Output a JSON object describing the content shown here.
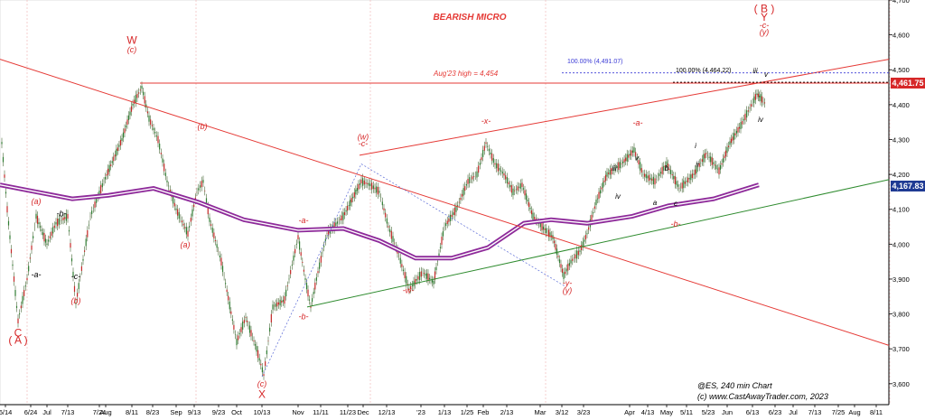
{
  "chart_data": {
    "type": "line",
    "title": "BEARISH MICRO",
    "instrument_caption": "@ES, 240 min Chart",
    "copyright": "(c) www.CastAwayTrader.com, 2023",
    "y_ticks": [
      "4,700",
      "4,600",
      "4,500",
      "4,400",
      "4,300",
      "4,200",
      "4,100",
      "4,000",
      "3,900",
      "3,800",
      "3,700",
      "3,600"
    ],
    "ylim": [
      3540,
      4700
    ],
    "x_ticks": [
      "6/14",
      "6/24",
      "Jul",
      "7/13",
      "7/24",
      "Aug",
      "8/11",
      "8/23",
      "Sep",
      "9/13",
      "9/23",
      "Oct",
      "10/13",
      "Nov",
      "11/11",
      "11/23",
      "Dec",
      "12/13",
      "'23",
      "1/13",
      "1/25",
      "Feb",
      "2/13",
      "Mar",
      "3/12",
      "3/23",
      "Apr",
      "4/13",
      "May",
      "5/11",
      "5/23",
      "Jun",
      "6/13",
      "6/23",
      "Jul",
      "7/13",
      "7/25",
      "Aug",
      "8/11"
    ],
    "price_labels": [
      {
        "text": "4,461.75",
        "value": 4461.75,
        "color": "#d62728"
      },
      {
        "text": "4,167.83",
        "value": 4167.83,
        "color": "#1f3a93"
      }
    ],
    "annotations": {
      "aug_high": "Aug'23 high = 4,454",
      "ext_100_blue": "100.00% (4,491.07)",
      "ext_100_black": "100.00% (4,464.22)"
    },
    "wave_labels": [
      {
        "text": "C",
        "color": "#d62728",
        "x": "6/14",
        "y": 3735
      },
      {
        "text": "( A )",
        "color": "#d62728",
        "x": "6/14",
        "y": 3715
      },
      {
        "text": "(a)",
        "color": "#d62728",
        "x": "6/24",
        "y": 4115
      },
      {
        "text": "-a-",
        "color": "#000000",
        "x": "6/24",
        "y": 3905
      },
      {
        "text": "-b-",
        "color": "#000000",
        "x": "Jul",
        "y": 4080
      },
      {
        "text": "-c-",
        "color": "#000000",
        "x": "7/13",
        "y": 3900
      },
      {
        "text": "(b)",
        "color": "#d62728",
        "x": "7/13",
        "y": 3830
      },
      {
        "text": "W",
        "color": "#d62728",
        "x": "8/11",
        "y": 4575
      },
      {
        "text": "(c)",
        "color": "#d62728",
        "x": "8/11",
        "y": 4550
      },
      {
        "text": "(b)",
        "color": "#d62728",
        "x": "9/13",
        "y": 4330
      },
      {
        "text": "(a)",
        "color": "#d62728",
        "x": "9/13",
        "y": 3990
      },
      {
        "text": "(c)",
        "color": "#d62728",
        "x": "10/13",
        "y": 3592
      },
      {
        "text": "X",
        "color": "#d62728",
        "x": "10/13",
        "y": 3560
      },
      {
        "text": "-a-",
        "color": "#d62728",
        "x": "Nov",
        "y": 4060
      },
      {
        "text": "-b-",
        "color": "#d62728",
        "x": "Nov",
        "y": 3785
      },
      {
        "text": "(w)",
        "color": "#d62728",
        "x": "Dec",
        "y": 4300
      },
      {
        "text": "-c-",
        "color": "#d62728",
        "x": "Dec",
        "y": 4280
      },
      {
        "text": "-w-",
        "color": "#d62728",
        "x": "12/13",
        "y": 3860
      },
      {
        "text": "-x-",
        "color": "#d62728",
        "x": "1/25",
        "y": 4345
      },
      {
        "text": "-y-",
        "color": "#d62728",
        "x": "3/12",
        "y": 3880
      },
      {
        "text": "(y)",
        "color": "#d62728",
        "x": "3/12",
        "y": 3860
      },
      {
        "text": "-a-",
        "color": "#d62728",
        "x": "4/13",
        "y": 4340
      },
      {
        "text": "-b-",
        "color": "#d62728",
        "x": "May",
        "y": 4050
      },
      {
        "text": "( B )",
        "color": "#d62728",
        "x": "6/13",
        "y": 4665
      },
      {
        "text": "Y",
        "color": "#d62728",
        "x": "6/13",
        "y": 4640
      },
      {
        "text": "-c-",
        "color": "#d62728",
        "x": "6/13",
        "y": 4620
      },
      {
        "text": "(y)",
        "color": "#d62728",
        "x": "6/13",
        "y": 4600
      }
    ],
    "minor_labels": [
      "iii",
      "v",
      "iv",
      "a",
      "b",
      "c",
      "i",
      "ii",
      "iii",
      "iv",
      "v"
    ],
    "series": []
  }
}
